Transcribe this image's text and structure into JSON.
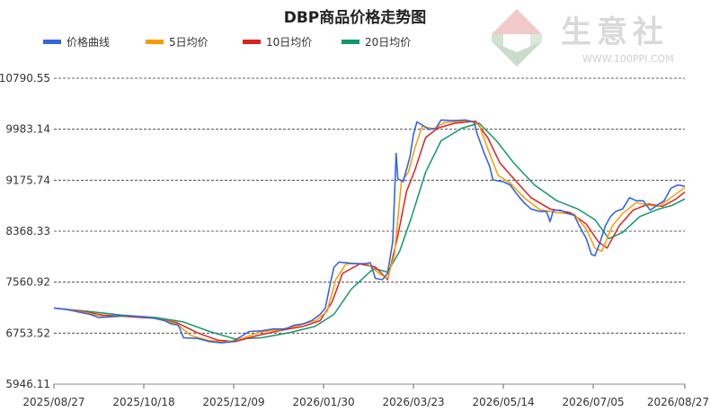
{
  "watermark": {
    "brand": "生意社",
    "logo_text": "PPI",
    "url": "WWW.100PPI.COM",
    "colors": {
      "top": "#f2c9c9",
      "left": "#cfe3cf",
      "right": "#dde8dd",
      "bottom": "#c9dcc9"
    }
  },
  "chart_data": {
    "type": "line",
    "title": "DBP商品价格走势图",
    "legend_position": "top-left",
    "grid": {
      "horizontal": true,
      "vertical": false,
      "style": "dashed"
    },
    "ylim": [
      5946.11,
      10790.55
    ],
    "y_ticks": [
      5946.11,
      6753.52,
      7560.92,
      8368.33,
      9175.74,
      9983.14,
      10790.55
    ],
    "y_tick_labels": [
      "5946.11",
      "6753.52",
      "7560.92",
      "8368.33",
      "9175.74",
      "9983.14",
      "10790.55"
    ],
    "x_range": [
      "2025/08/27",
      "2026/08/27"
    ],
    "x_ticks": [
      "2025/08/27",
      "2025/10/18",
      "2025/12/09",
      "2026/01/30",
      "2026/03/23",
      "2026/05/14",
      "2026/07/05",
      "2026/08/27"
    ],
    "series": [
      {
        "name": "价格曲线",
        "color": "#3366dd",
        "points": [
          [
            "2025/08/27",
            7150
          ],
          [
            "2025/09/03",
            7130
          ],
          [
            "2025/09/10",
            7090
          ],
          [
            "2025/09/17",
            7050
          ],
          [
            "2025/09/22",
            7000
          ],
          [
            "2025/09/28",
            7010
          ],
          [
            "2025/10/05",
            7030
          ],
          [
            "2025/10/12",
            7020
          ],
          [
            "2025/10/18",
            7010
          ],
          [
            "2025/10/24",
            6990
          ],
          [
            "2025/10/30",
            6950
          ],
          [
            "2025/11/03",
            6900
          ],
          [
            "2025/11/07",
            6880
          ],
          [
            "2025/11/10",
            6680
          ],
          [
            "2025/11/18",
            6670
          ],
          [
            "2025/11/25",
            6620
          ],
          [
            "2025/12/02",
            6600
          ],
          [
            "2025/12/09",
            6620
          ],
          [
            "2025/12/12",
            6680
          ],
          [
            "2025/12/18",
            6780
          ],
          [
            "2025/12/25",
            6790
          ],
          [
            "2026/01/01",
            6820
          ],
          [
            "2026/01/08",
            6820
          ],
          [
            "2026/01/13",
            6880
          ],
          [
            "2026/01/18",
            6900
          ],
          [
            "2026/01/23",
            6950
          ],
          [
            "2026/01/28",
            7050
          ],
          [
            "2026/01/31",
            7150
          ],
          [
            "2026/02/03",
            7550
          ],
          [
            "2026/02/05",
            7800
          ],
          [
            "2026/02/08",
            7880
          ],
          [
            "2026/02/15",
            7860
          ],
          [
            "2026/02/22",
            7850
          ],
          [
            "2026/02/26",
            7870
          ],
          [
            "2026/03/01",
            7620
          ],
          [
            "2026/03/05",
            7600
          ],
          [
            "2026/03/08",
            7700
          ],
          [
            "2026/03/11",
            8200
          ],
          [
            "2026/03/13",
            9600
          ],
          [
            "2026/03/14",
            9200
          ],
          [
            "2026/03/17",
            9150
          ],
          [
            "2026/03/19",
            9350
          ],
          [
            "2026/03/21",
            9550
          ],
          [
            "2026/03/23",
            9900
          ],
          [
            "2026/03/25",
            10100
          ],
          [
            "2026/03/28",
            10050
          ],
          [
            "2026/04/01",
            9980
          ],
          [
            "2026/04/05",
            10000
          ],
          [
            "2026/04/08",
            10130
          ],
          [
            "2026/04/15",
            10120
          ],
          [
            "2026/04/22",
            10130
          ],
          [
            "2026/04/27",
            10100
          ],
          [
            "2026/04/29",
            9900
          ],
          [
            "2026/05/03",
            9600
          ],
          [
            "2026/05/06",
            9400
          ],
          [
            "2026/05/08",
            9180
          ],
          [
            "2026/05/14",
            9150
          ],
          [
            "2026/05/18",
            9100
          ],
          [
            "2026/05/22",
            8950
          ],
          [
            "2026/05/26",
            8820
          ],
          [
            "2026/05/30",
            8720
          ],
          [
            "2026/06/04",
            8680
          ],
          [
            "2026/06/08",
            8680
          ],
          [
            "2026/06/10",
            8520
          ],
          [
            "2026/06/12",
            8700
          ],
          [
            "2026/06/16",
            8700
          ],
          [
            "2026/06/20",
            8650
          ],
          [
            "2026/06/24",
            8620
          ],
          [
            "2026/06/27",
            8450
          ],
          [
            "2026/07/01",
            8250
          ],
          [
            "2026/07/04",
            8000
          ],
          [
            "2026/07/06",
            7980
          ],
          [
            "2026/07/09",
            8200
          ],
          [
            "2026/07/12",
            8450
          ],
          [
            "2026/07/15",
            8600
          ],
          [
            "2026/07/18",
            8680
          ],
          [
            "2026/07/22",
            8720
          ],
          [
            "2026/07/26",
            8900
          ],
          [
            "2026/07/30",
            8850
          ],
          [
            "2026/08/03",
            8850
          ],
          [
            "2026/08/07",
            8700
          ],
          [
            "2026/08/11",
            8780
          ],
          [
            "2026/08/15",
            8850
          ],
          [
            "2026/08/19",
            9050
          ],
          [
            "2026/08/23",
            9100
          ],
          [
            "2026/08/27",
            9080
          ]
        ]
      },
      {
        "name": "5日均价",
        "color": "#ff9900",
        "points": [
          [
            "2025/08/27",
            7150
          ],
          [
            "2025/09/06",
            7120
          ],
          [
            "2025/09/16",
            7070
          ],
          [
            "2025/09/26",
            7010
          ],
          [
            "2025/10/08",
            7020
          ],
          [
            "2025/10/18",
            7010
          ],
          [
            "2025/10/28",
            6970
          ],
          [
            "2025/11/06",
            6900
          ],
          [
            "2025/11/14",
            6720
          ],
          [
            "2025/11/24",
            6640
          ],
          [
            "2025/12/04",
            6610
          ],
          [
            "2025/12/14",
            6670
          ],
          [
            "2025/12/24",
            6770
          ],
          [
            "2026/01/05",
            6810
          ],
          [
            "2026/01/16",
            6880
          ],
          [
            "2026/01/26",
            6960
          ],
          [
            "2026/02/01",
            7100
          ],
          [
            "2026/02/06",
            7600
          ],
          [
            "2026/02/12",
            7850
          ],
          [
            "2026/02/24",
            7860
          ],
          [
            "2026/03/03",
            7700
          ],
          [
            "2026/03/08",
            7620
          ],
          [
            "2026/03/12",
            8000
          ],
          [
            "2026/03/16",
            9150
          ],
          [
            "2026/03/20",
            9300
          ],
          [
            "2026/03/24",
            9700
          ],
          [
            "2026/03/28",
            10030
          ],
          [
            "2026/04/04",
            9990
          ],
          [
            "2026/04/10",
            10090
          ],
          [
            "2026/04/24",
            10120
          ],
          [
            "2026/04/30",
            10050
          ],
          [
            "2026/05/06",
            9600
          ],
          [
            "2026/05/11",
            9250
          ],
          [
            "2026/05/18",
            9130
          ],
          [
            "2026/05/26",
            8900
          ],
          [
            "2026/06/04",
            8710
          ],
          [
            "2026/06/14",
            8660
          ],
          [
            "2026/06/24",
            8640
          ],
          [
            "2026/07/01",
            8400
          ],
          [
            "2026/07/06",
            8100
          ],
          [
            "2026/07/10",
            8050
          ],
          [
            "2026/07/16",
            8450
          ],
          [
            "2026/07/22",
            8650
          ],
          [
            "2026/07/30",
            8820
          ],
          [
            "2026/08/06",
            8780
          ],
          [
            "2026/08/12",
            8760
          ],
          [
            "2026/08/20",
            8920
          ],
          [
            "2026/08/27",
            9060
          ]
        ]
      },
      {
        "name": "10日均价",
        "color": "#dd2222",
        "points": [
          [
            "2025/08/27",
            7150
          ],
          [
            "2025/09/10",
            7110
          ],
          [
            "2025/09/24",
            7040
          ],
          [
            "2025/10/10",
            7010
          ],
          [
            "2025/10/24",
            6990
          ],
          [
            "2025/11/06",
            6920
          ],
          [
            "2025/11/18",
            6760
          ],
          [
            "2025/11/30",
            6640
          ],
          [
            "2025/12/10",
            6620
          ],
          [
            "2025/12/22",
            6710
          ],
          [
            "2026/01/04",
            6790
          ],
          [
            "2026/01/18",
            6860
          ],
          [
            "2026/01/28",
            6950
          ],
          [
            "2026/02/04",
            7250
          ],
          [
            "2026/02/10",
            7700
          ],
          [
            "2026/02/20",
            7850
          ],
          [
            "2026/03/01",
            7800
          ],
          [
            "2026/03/08",
            7600
          ],
          [
            "2026/03/14",
            8300
          ],
          [
            "2026/03/19",
            9000
          ],
          [
            "2026/03/24",
            9350
          ],
          [
            "2026/03/30",
            9850
          ],
          [
            "2026/04/06",
            10000
          ],
          [
            "2026/04/16",
            10080
          ],
          [
            "2026/04/28",
            10110
          ],
          [
            "2026/05/05",
            9850
          ],
          [
            "2026/05/12",
            9450
          ],
          [
            "2026/05/20",
            9200
          ],
          [
            "2026/05/30",
            8900
          ],
          [
            "2026/06/10",
            8720
          ],
          [
            "2026/06/22",
            8660
          ],
          [
            "2026/07/01",
            8480
          ],
          [
            "2026/07/08",
            8200
          ],
          [
            "2026/07/13",
            8100
          ],
          [
            "2026/07/20",
            8450
          ],
          [
            "2026/07/28",
            8700
          ],
          [
            "2026/08/06",
            8800
          ],
          [
            "2026/08/14",
            8760
          ],
          [
            "2026/08/22",
            8880
          ],
          [
            "2026/08/27",
            8990
          ]
        ]
      },
      {
        "name": "20日均价",
        "color": "#119966",
        "points": [
          [
            "2025/08/27",
            7150
          ],
          [
            "2025/09/15",
            7100
          ],
          [
            "2025/10/05",
            7040
          ],
          [
            "2025/10/25",
            7000
          ],
          [
            "2025/11/10",
            6930
          ],
          [
            "2025/11/25",
            6780
          ],
          [
            "2025/12/10",
            6660
          ],
          [
            "2025/12/25",
            6680
          ],
          [
            "2026/01/10",
            6760
          ],
          [
            "2026/01/25",
            6860
          ],
          [
            "2026/02/05",
            7050
          ],
          [
            "2026/02/15",
            7450
          ],
          [
            "2026/02/28",
            7780
          ],
          [
            "2026/03/08",
            7720
          ],
          [
            "2026/03/15",
            8050
          ],
          [
            "2026/03/22",
            8600
          ],
          [
            "2026/03/30",
            9300
          ],
          [
            "2026/04/08",
            9800
          ],
          [
            "2026/04/20",
            10000
          ],
          [
            "2026/04/30",
            10080
          ],
          [
            "2026/05/10",
            9800
          ],
          [
            "2026/05/20",
            9450
          ],
          [
            "2026/06/01",
            9100
          ],
          [
            "2026/06/14",
            8850
          ],
          [
            "2026/06/26",
            8720
          ],
          [
            "2026/07/06",
            8550
          ],
          [
            "2026/07/14",
            8250
          ],
          [
            "2026/07/22",
            8350
          ],
          [
            "2026/08/01",
            8600
          ],
          [
            "2026/08/12",
            8720
          ],
          [
            "2026/08/20",
            8780
          ],
          [
            "2026/08/27",
            8880
          ]
        ]
      }
    ]
  }
}
